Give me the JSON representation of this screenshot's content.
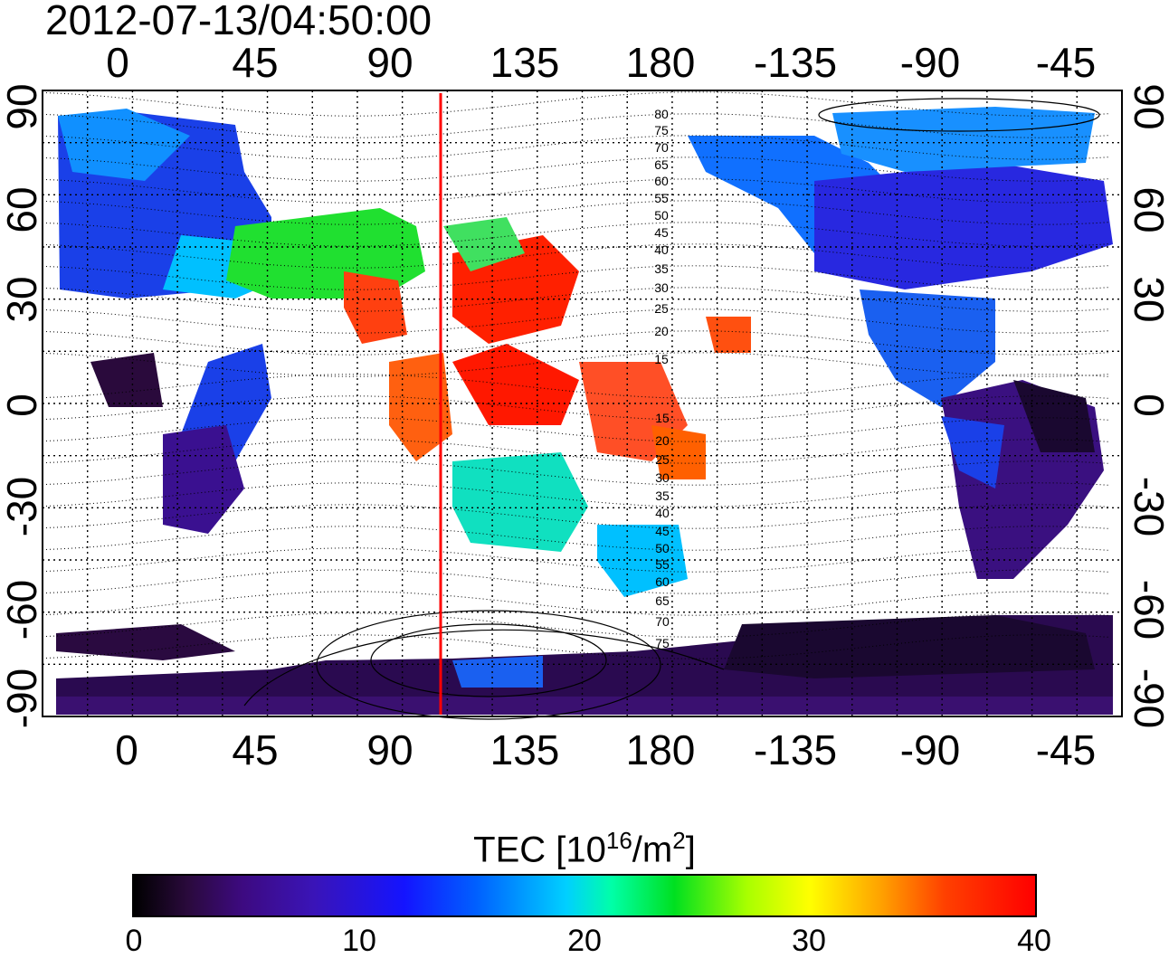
{
  "timestamp": "2012-07-13/04:50:00",
  "map": {
    "lon_ticks": [
      "0",
      "45",
      "90",
      "135",
      "180",
      "-135",
      "-90",
      "-45"
    ],
    "lat_ticks": [
      "90",
      "60",
      "30",
      "0",
      "-30",
      "-60",
      "-90"
    ],
    "contour_labels": [
      "80",
      "75",
      "70",
      "65",
      "60",
      "55",
      "50",
      "45",
      "40",
      "35",
      "30",
      "25",
      "20",
      "15",
      "15",
      "20",
      "25",
      "30",
      "35",
      "40",
      "45",
      "50",
      "55",
      "60",
      "65",
      "70",
      "75"
    ],
    "marker_line_color": "#ff0000"
  },
  "colorbar": {
    "title": "TEC  [10",
    "title_exp": "16",
    "title_unit": "/m",
    "title_exp2": "2",
    "title_end": "]",
    "ticks": [
      "0",
      "10",
      "20",
      "30",
      "40"
    ],
    "range": [
      0,
      40
    ]
  },
  "colors": {
    "low": "#000000",
    "mid_blue": "#1414ff",
    "cyan": "#00d0ff",
    "green": "#00e020",
    "yellow": "#ffff00",
    "high": "#ff0000"
  }
}
